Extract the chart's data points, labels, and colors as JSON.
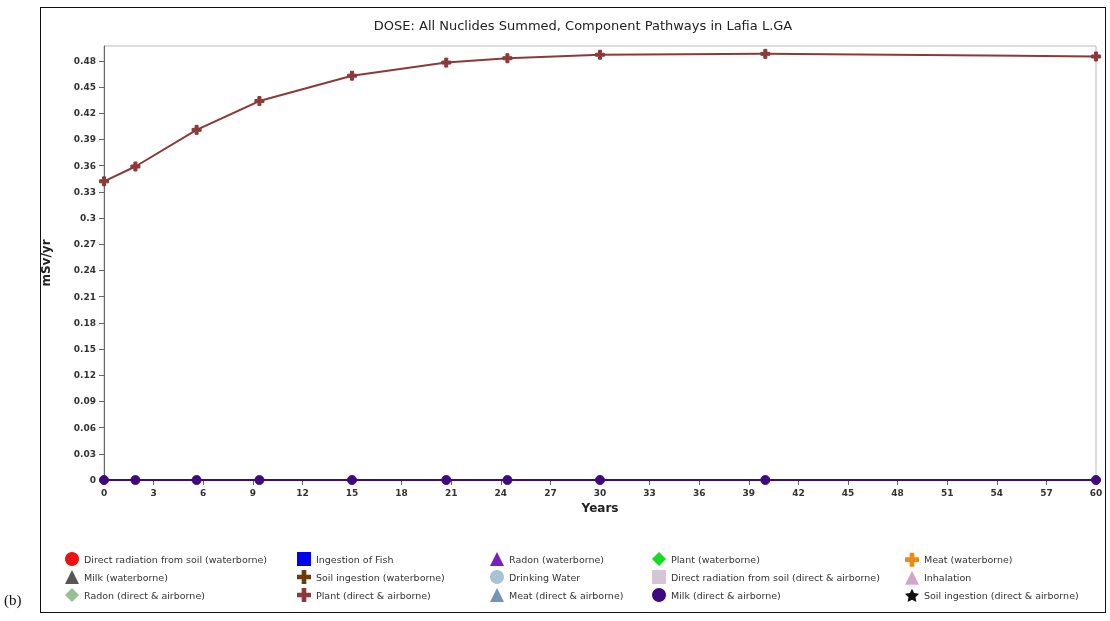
{
  "chart_data": {
    "type": "line",
    "title": "DOSE: All Nuclides Summed, Component Pathways in Lafia L.GA",
    "xlabel": "Years",
    "ylabel": "mSv/yr",
    "x": [
      0,
      1.9,
      5.6,
      9.4,
      15,
      20.7,
      24.4,
      30,
      40,
      60
    ],
    "xlim": [
      0,
      60
    ],
    "xticks": [
      0,
      3,
      6,
      9,
      12,
      15,
      18,
      21,
      24,
      27,
      30,
      33,
      36,
      39,
      42,
      45,
      48,
      51,
      54,
      57,
      60
    ],
    "ylim": [
      0,
      0.497
    ],
    "yticks": [
      0,
      0.03,
      0.06,
      0.09,
      0.12,
      0.15,
      0.18,
      0.21,
      0.24,
      0.27,
      0.3,
      0.33,
      0.36,
      0.39,
      0.42,
      0.45,
      0.48
    ],
    "grid": false,
    "legend": "bottom",
    "annotations": [
      "(b)"
    ],
    "series": [
      {
        "name": "Direct radiation from soil (waterborne)",
        "color": "#ee1111",
        "marker": "circle",
        "values": [
          null,
          null,
          null,
          null,
          null,
          null,
          null,
          null,
          null,
          null
        ]
      },
      {
        "name": "Ingestion of Fish",
        "color": "#0000ee",
        "marker": "square",
        "values": [
          null,
          null,
          null,
          null,
          null,
          null,
          null,
          null,
          null,
          null
        ]
      },
      {
        "name": "Radon (waterborne)",
        "color": "#7a1fbf",
        "marker": "triangle",
        "values": [
          null,
          null,
          null,
          null,
          null,
          null,
          null,
          null,
          null,
          null
        ]
      },
      {
        "name": "Plant (waterborne)",
        "color": "#11dd22",
        "marker": "diamond",
        "values": [
          null,
          null,
          null,
          null,
          null,
          null,
          null,
          null,
          null,
          null
        ]
      },
      {
        "name": "Meat (waterborne)",
        "color": "#f08a10",
        "marker": "cross",
        "values": [
          null,
          null,
          null,
          null,
          null,
          null,
          null,
          null,
          null,
          null
        ]
      },
      {
        "name": "Milk (waterborne)",
        "color": "#555555",
        "marker": "triangle",
        "values": [
          null,
          null,
          null,
          null,
          null,
          null,
          null,
          null,
          null,
          null
        ]
      },
      {
        "name": "Soil ingestion (waterborne)",
        "color": "#6b3a10",
        "marker": "cross",
        "values": [
          null,
          null,
          null,
          null,
          null,
          null,
          null,
          null,
          null,
          null
        ]
      },
      {
        "name": "Drinking Water",
        "color": "#a8c4d4",
        "marker": "circle",
        "values": [
          null,
          null,
          null,
          null,
          null,
          null,
          null,
          null,
          null,
          null
        ]
      },
      {
        "name": "Direct radiation from soil (direct & airborne)",
        "color": "#d4c4d4",
        "marker": "square",
        "values": [
          null,
          null,
          null,
          null,
          null,
          null,
          null,
          null,
          null,
          null
        ]
      },
      {
        "name": "Inhalation",
        "color": "#d4a4c8",
        "marker": "triangle",
        "values": [
          null,
          null,
          null,
          null,
          null,
          null,
          null,
          null,
          null,
          null
        ]
      },
      {
        "name": "Radon (direct & airborne)",
        "color": "#94c094",
        "marker": "diamond",
        "values": [
          null,
          null,
          null,
          null,
          null,
          null,
          null,
          null,
          null,
          null
        ]
      },
      {
        "name": "Plant (direct & airborne)",
        "color": "#8b3a3a",
        "marker": "cross",
        "values": [
          0.342,
          0.359,
          0.401,
          0.434,
          0.463,
          0.478,
          0.483,
          0.487,
          0.488,
          0.485
        ]
      },
      {
        "name": "Meat (direct & airborne)",
        "color": "#7494b4",
        "marker": "triangle",
        "values": [
          null,
          null,
          null,
          null,
          null,
          null,
          null,
          null,
          null,
          null
        ]
      },
      {
        "name": "Milk (direct & airborne)",
        "color": "#3f0a7f",
        "marker": "circle",
        "values": [
          0,
          0,
          0,
          0,
          0,
          0,
          0,
          0,
          0,
          0
        ]
      },
      {
        "name": "Soil ingestion (direct & airborne)",
        "color": "#111111",
        "marker": "star",
        "values": [
          null,
          null,
          null,
          null,
          null,
          null,
          null,
          null,
          null,
          null
        ]
      }
    ]
  }
}
